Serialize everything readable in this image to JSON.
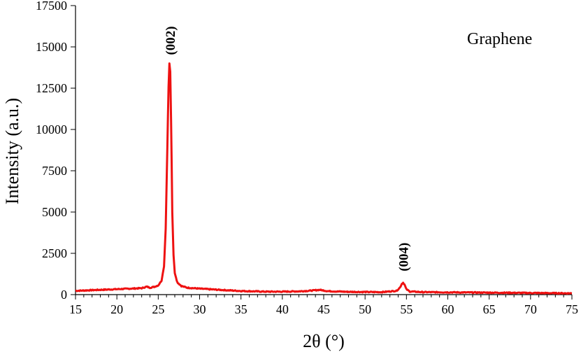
{
  "chart_data": {
    "type": "line",
    "xlabel": "2θ (°)",
    "ylabel": "Intensity (a.u.)",
    "xlim": [
      15,
      75
    ],
    "ylim": [
      0,
      17500
    ],
    "x_ticks": [
      "15",
      "20",
      "25",
      "30",
      "35",
      "40",
      "45",
      "50",
      "55",
      "60",
      "65",
      "70",
      "75"
    ],
    "y_ticks": [
      "0",
      "2500",
      "5000",
      "7500",
      "10000",
      "12500",
      "15000",
      "17500"
    ],
    "legend": "Graphene",
    "grid": false,
    "line_color": "#ee1111",
    "annotations": [
      {
        "text": "(002)",
        "x": 26.4,
        "y": 14000
      },
      {
        "text": "(004)",
        "x": 54.6,
        "y": 900
      }
    ],
    "series": [
      {
        "name": "Graphene",
        "x": [
          15,
          17,
          19,
          21,
          23,
          23.6,
          24,
          24.5,
          25,
          25.4,
          25.7,
          25.9,
          26.1,
          26.25,
          26.35,
          26.45,
          26.55,
          26.7,
          26.85,
          27.0,
          27.3,
          27.8,
          28.5,
          30,
          32,
          35,
          38,
          40,
          42,
          43.5,
          44.5,
          45.5,
          48,
          52,
          53.8,
          54.2,
          54.45,
          54.6,
          54.75,
          55.0,
          55.4,
          57,
          60,
          65,
          70,
          75
        ],
        "y": [
          230,
          270,
          310,
          350,
          390,
          480,
          420,
          470,
          560,
          850,
          1700,
          4000,
          9000,
          12600,
          14000,
          13500,
          10500,
          5000,
          2400,
          1300,
          750,
          520,
          420,
          360,
          300,
          220,
          180,
          180,
          200,
          240,
          290,
          210,
          170,
          150,
          230,
          420,
          660,
          720,
          620,
          320,
          190,
          150,
          140,
          120,
          100,
          80
        ]
      }
    ]
  }
}
